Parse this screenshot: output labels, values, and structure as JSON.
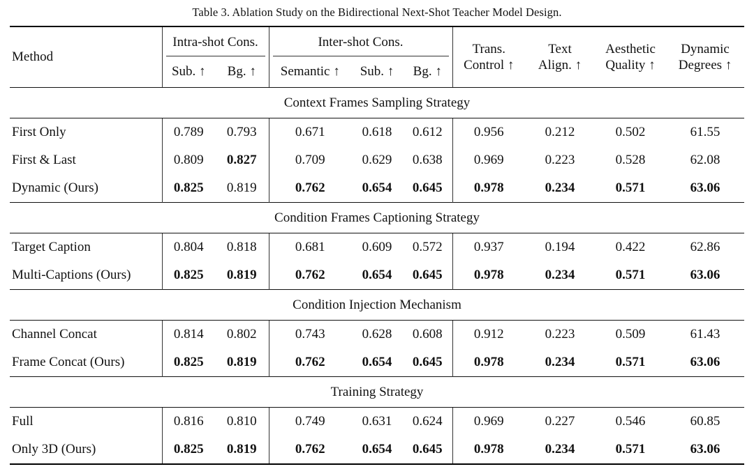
{
  "caption": "Table 3. Ablation Study on the Bidirectional Next-Shot Teacher Model Design.",
  "colors": {
    "background": "#ffffff",
    "text": "#111111",
    "rule": "#000000",
    "vertical_line": "#333333"
  },
  "header": {
    "method": "Method",
    "groups": [
      {
        "label": "Intra-shot Cons.",
        "cols": [
          "Sub. ↑",
          "Bg. ↑"
        ]
      },
      {
        "label": "Inter-shot Cons.",
        "cols": [
          "Semantic ↑",
          "Sub. ↑",
          "Bg. ↑"
        ]
      }
    ],
    "single_columns": [
      {
        "line1": "Trans.",
        "line2": "Control ↑"
      },
      {
        "line1": "Text",
        "line2": "Align. ↑"
      },
      {
        "line1": "Aesthetic",
        "line2": "Quality ↑"
      },
      {
        "line1": "Dynamic",
        "line2": "Degrees ↑"
      }
    ]
  },
  "sections": [
    {
      "title": "Context Frames Sampling Strategy",
      "rows": [
        {
          "method": "First Only",
          "values": [
            "0.789",
            "0.793",
            "0.671",
            "0.618",
            "0.612",
            "0.956",
            "0.212",
            "0.502",
            "61.55"
          ],
          "bold": [
            false,
            false,
            false,
            false,
            false,
            false,
            false,
            false,
            false
          ]
        },
        {
          "method": "First & Last",
          "values": [
            "0.809",
            "0.827",
            "0.709",
            "0.629",
            "0.638",
            "0.969",
            "0.223",
            "0.528",
            "62.08"
          ],
          "bold": [
            false,
            true,
            false,
            false,
            false,
            false,
            false,
            false,
            false
          ]
        },
        {
          "method": "Dynamic (Ours)",
          "values": [
            "0.825",
            "0.819",
            "0.762",
            "0.654",
            "0.645",
            "0.978",
            "0.234",
            "0.571",
            "63.06"
          ],
          "bold": [
            true,
            false,
            true,
            true,
            true,
            true,
            true,
            true,
            true
          ]
        }
      ]
    },
    {
      "title": "Condition Frames Captioning Strategy",
      "rows": [
        {
          "method": "Target Caption",
          "values": [
            "0.804",
            "0.818",
            "0.681",
            "0.609",
            "0.572",
            "0.937",
            "0.194",
            "0.422",
            "62.86"
          ],
          "bold": [
            false,
            false,
            false,
            false,
            false,
            false,
            false,
            false,
            false
          ]
        },
        {
          "method": "Multi-Captions (Ours)",
          "values": [
            "0.825",
            "0.819",
            "0.762",
            "0.654",
            "0.645",
            "0.978",
            "0.234",
            "0.571",
            "63.06"
          ],
          "bold": [
            true,
            true,
            true,
            true,
            true,
            true,
            true,
            true,
            true
          ]
        }
      ]
    },
    {
      "title": "Condition Injection Mechanism",
      "rows": [
        {
          "method": "Channel Concat",
          "values": [
            "0.814",
            "0.802",
            "0.743",
            "0.628",
            "0.608",
            "0.912",
            "0.223",
            "0.509",
            "61.43"
          ],
          "bold": [
            false,
            false,
            false,
            false,
            false,
            false,
            false,
            false,
            false
          ]
        },
        {
          "method": "Frame Concat (Ours)",
          "values": [
            "0.825",
            "0.819",
            "0.762",
            "0.654",
            "0.645",
            "0.978",
            "0.234",
            "0.571",
            "63.06"
          ],
          "bold": [
            true,
            true,
            true,
            true,
            true,
            true,
            true,
            true,
            true
          ]
        }
      ]
    },
    {
      "title": "Training Strategy",
      "rows": [
        {
          "method": "Full",
          "values": [
            "0.816",
            "0.810",
            "0.749",
            "0.631",
            "0.624",
            "0.969",
            "0.227",
            "0.546",
            "60.85"
          ],
          "bold": [
            false,
            false,
            false,
            false,
            false,
            false,
            false,
            false,
            false
          ]
        },
        {
          "method": "Only 3D (Ours)",
          "values": [
            "0.825",
            "0.819",
            "0.762",
            "0.654",
            "0.645",
            "0.978",
            "0.234",
            "0.571",
            "63.06"
          ],
          "bold": [
            true,
            true,
            true,
            true,
            true,
            true,
            true,
            true,
            true
          ]
        }
      ]
    }
  ]
}
